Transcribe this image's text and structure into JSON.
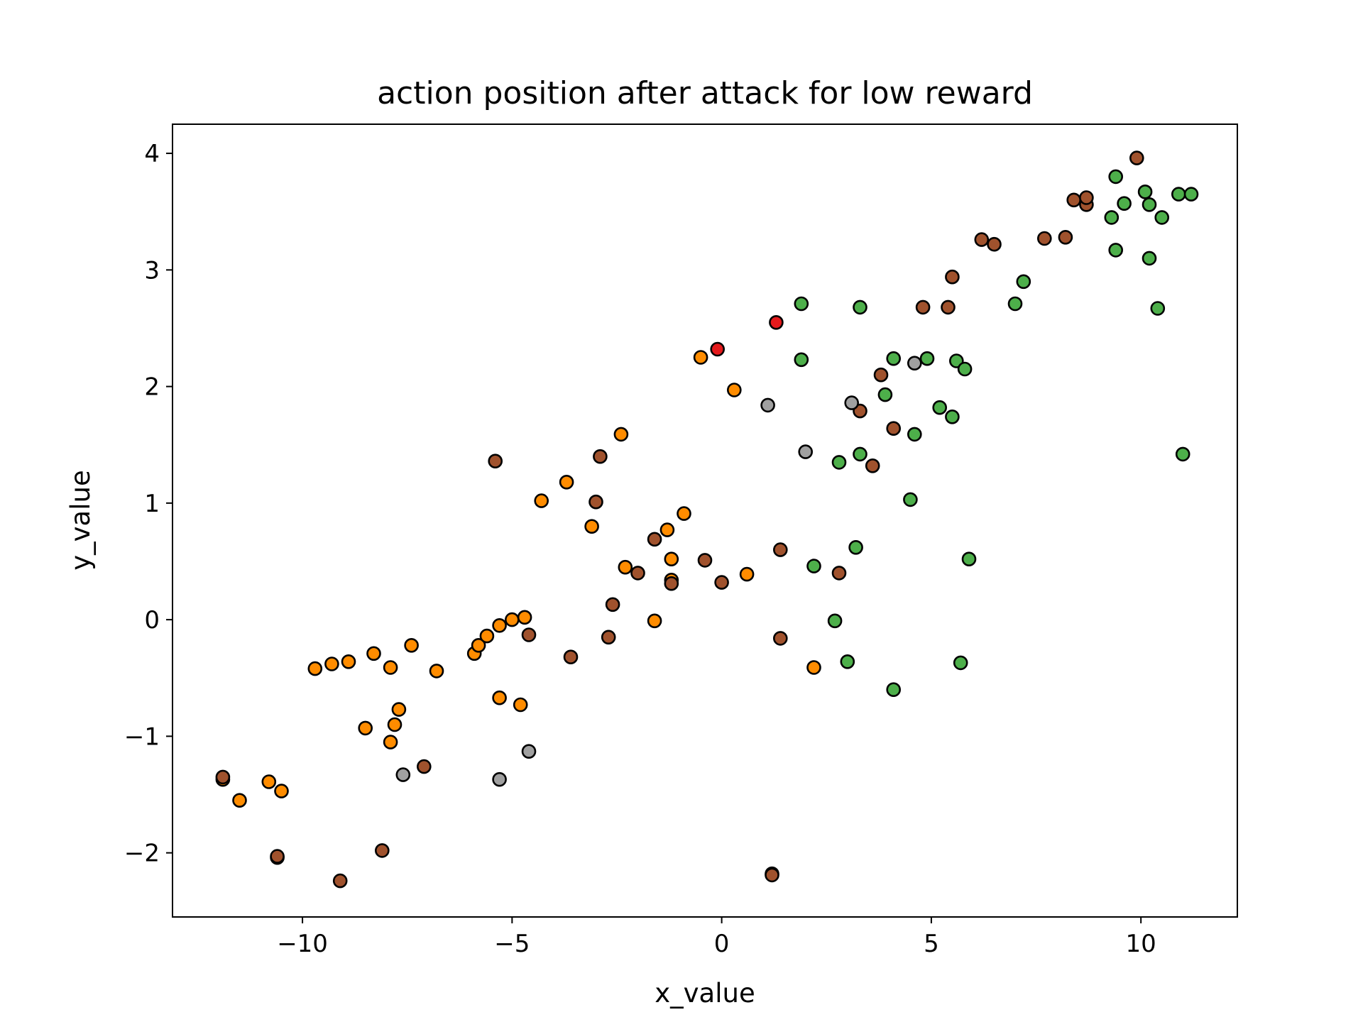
{
  "chart_data": {
    "type": "scatter",
    "title": "action position after attack for low reward",
    "xlabel": "x_value",
    "ylabel": "y_value",
    "xlim": [
      -13.1,
      12.3
    ],
    "ylim": [
      -2.55,
      4.25
    ],
    "xticks": [
      -10,
      -5,
      0,
      5,
      10
    ],
    "xtick_labels": [
      "−10",
      "−5",
      "0",
      "5",
      "10"
    ],
    "yticks": [
      -2,
      -1,
      0,
      1,
      2,
      3,
      4
    ],
    "ytick_labels": [
      "−2",
      "−1",
      "0",
      "1",
      "2",
      "3",
      "4"
    ],
    "grid": false,
    "legend": "none",
    "marker_edge_color": "#000000",
    "colors": {
      "orange": "#ff8c00",
      "brown": "#a0522d",
      "green": "#4daf4a",
      "gray": "#a0a0a0",
      "red": "#e41a1c"
    },
    "series": [
      {
        "color": "#ff8c00",
        "points": [
          [
            -11.9,
            -1.37
          ],
          [
            -11.5,
            -1.55
          ],
          [
            -10.8,
            -1.39
          ],
          [
            -10.5,
            -1.47
          ],
          [
            -9.7,
            -0.42
          ],
          [
            -9.3,
            -0.38
          ],
          [
            -8.9,
            -0.36
          ],
          [
            -8.3,
            -0.29
          ],
          [
            -7.9,
            -0.41
          ],
          [
            -7.4,
            -0.22
          ],
          [
            -6.8,
            -0.44
          ],
          [
            -8.5,
            -0.93
          ],
          [
            -7.8,
            -0.9
          ],
          [
            -7.7,
            -0.77
          ],
          [
            -7.9,
            -1.05
          ],
          [
            -5.9,
            -0.29
          ],
          [
            -5.8,
            -0.22
          ],
          [
            -5.6,
            -0.14
          ],
          [
            -5.3,
            -0.05
          ],
          [
            -5.0,
            0.0
          ],
          [
            -4.7,
            0.02
          ],
          [
            -5.3,
            -0.67
          ],
          [
            -4.8,
            -0.73
          ],
          [
            -4.3,
            1.02
          ],
          [
            -3.7,
            1.18
          ],
          [
            -3.1,
            0.8
          ],
          [
            -2.4,
            1.59
          ],
          [
            -2.3,
            0.45
          ],
          [
            -1.6,
            -0.01
          ],
          [
            -1.3,
            0.77
          ],
          [
            -1.2,
            0.52
          ],
          [
            -1.2,
            0.34
          ],
          [
            -0.9,
            0.91
          ],
          [
            -0.5,
            2.25
          ],
          [
            0.3,
            1.97
          ],
          [
            0.6,
            0.39
          ],
          [
            2.2,
            -0.41
          ]
        ]
      },
      {
        "color": "#a0522d",
        "points": [
          [
            -11.9,
            -1.35
          ],
          [
            -10.6,
            -2.04
          ],
          [
            -10.6,
            -2.03
          ],
          [
            -9.1,
            -2.24
          ],
          [
            -8.1,
            -1.98
          ],
          [
            -7.1,
            -1.26
          ],
          [
            -5.4,
            1.36
          ],
          [
            -4.6,
            -0.13
          ],
          [
            -3.6,
            -0.32
          ],
          [
            -3.0,
            1.01
          ],
          [
            -2.9,
            1.4
          ],
          [
            -2.6,
            0.13
          ],
          [
            -2.7,
            -0.15
          ],
          [
            -2.0,
            0.4
          ],
          [
            -1.6,
            0.69
          ],
          [
            -1.2,
            0.31
          ],
          [
            -0.4,
            0.51
          ],
          [
            0.0,
            0.32
          ],
          [
            1.2,
            -2.18
          ],
          [
            1.2,
            -2.19
          ],
          [
            1.4,
            0.6
          ],
          [
            1.4,
            -0.16
          ],
          [
            2.8,
            0.4
          ],
          [
            3.3,
            1.79
          ],
          [
            3.6,
            1.32
          ],
          [
            3.8,
            2.1
          ],
          [
            4.1,
            1.64
          ],
          [
            4.8,
            2.68
          ],
          [
            5.4,
            2.68
          ],
          [
            5.5,
            2.94
          ],
          [
            6.2,
            3.26
          ],
          [
            6.5,
            3.22
          ],
          [
            7.7,
            3.27
          ],
          [
            8.2,
            3.28
          ],
          [
            8.4,
            3.6
          ],
          [
            8.7,
            3.56
          ],
          [
            8.7,
            3.62
          ],
          [
            9.9,
            3.96
          ]
        ]
      },
      {
        "color": "#4daf4a",
        "points": [
          [
            1.9,
            2.71
          ],
          [
            1.9,
            2.23
          ],
          [
            2.2,
            0.46
          ],
          [
            2.7,
            -0.01
          ],
          [
            2.8,
            1.35
          ],
          [
            3.0,
            -0.36
          ],
          [
            3.2,
            0.62
          ],
          [
            3.3,
            1.42
          ],
          [
            3.3,
            2.68
          ],
          [
            3.9,
            1.93
          ],
          [
            4.1,
            2.24
          ],
          [
            4.1,
            -0.6
          ],
          [
            4.5,
            1.03
          ],
          [
            4.6,
            1.59
          ],
          [
            4.9,
            2.24
          ],
          [
            5.2,
            1.82
          ],
          [
            5.5,
            1.74
          ],
          [
            5.6,
            2.22
          ],
          [
            5.7,
            -0.37
          ],
          [
            5.8,
            2.15
          ],
          [
            5.9,
            0.52
          ],
          [
            7.0,
            2.71
          ],
          [
            7.2,
            2.9
          ],
          [
            9.3,
            3.45
          ],
          [
            9.4,
            3.8
          ],
          [
            9.4,
            3.17
          ],
          [
            9.6,
            3.57
          ],
          [
            10.1,
            3.67
          ],
          [
            10.2,
            3.1
          ],
          [
            10.2,
            3.56
          ],
          [
            10.4,
            2.67
          ],
          [
            10.5,
            3.45
          ],
          [
            10.9,
            3.65
          ],
          [
            11.0,
            1.42
          ],
          [
            11.2,
            3.65
          ]
        ]
      },
      {
        "color": "#a0a0a0",
        "points": [
          [
            -7.6,
            -1.33
          ],
          [
            -5.3,
            -1.37
          ],
          [
            -4.6,
            -1.13
          ],
          [
            1.1,
            1.84
          ],
          [
            2.0,
            1.44
          ],
          [
            3.1,
            1.86
          ],
          [
            4.6,
            2.2
          ]
        ]
      },
      {
        "color": "#e41a1c",
        "points": [
          [
            -0.1,
            2.32
          ],
          [
            1.3,
            2.55
          ]
        ]
      }
    ]
  }
}
